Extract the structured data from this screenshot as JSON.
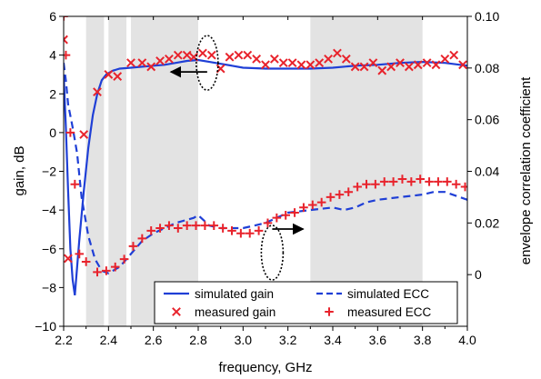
{
  "chart_data": {
    "type": "line",
    "xlabel": "frequency, GHz",
    "ylabel_left": "gain, dB",
    "ylabel_right": "envelope correlation coefficient",
    "xlim": [
      2.2,
      4.0
    ],
    "ylim_left": [
      -10,
      6
    ],
    "ylim_right": [
      -0.02,
      0.1
    ],
    "x_ticks": [
      "2.2",
      "2.4",
      "2.6",
      "2.8",
      "3.0",
      "3.2",
      "3.4",
      "3.6",
      "3.8",
      "4.0"
    ],
    "y_left_ticks": [
      "−10",
      "−8",
      "−6",
      "−4",
      "−2",
      "0",
      "2",
      "4",
      "6"
    ],
    "y_right_ticks": [
      "0",
      "0.02",
      "0.04",
      "0.06",
      "0.08",
      "0.10"
    ],
    "shaded_bands": [
      [
        2.3,
        2.38
      ],
      [
        2.4,
        2.48
      ],
      [
        2.5,
        2.8
      ],
      [
        3.3,
        3.8
      ]
    ],
    "grid": false,
    "legend_position": "bottom-right",
    "series": [
      {
        "name": "simulated gain",
        "axis": "left",
        "style": "solid",
        "color": "#1f3fd6",
        "x": [
          2.2,
          2.21,
          2.22,
          2.23,
          2.24,
          2.25,
          2.27,
          2.29,
          2.31,
          2.33,
          2.35,
          2.37,
          2.39,
          2.42,
          2.45,
          2.5,
          2.55,
          2.6,
          2.65,
          2.7,
          2.75,
          2.8,
          2.85,
          2.9,
          2.95,
          3.0,
          3.1,
          3.2,
          3.3,
          3.4,
          3.5,
          3.6,
          3.7,
          3.8,
          3.9,
          4.0
        ],
        "y": [
          3.0,
          0.2,
          -3.0,
          -6.0,
          -7.6,
          -8.4,
          -5.5,
          -3.0,
          -0.8,
          0.9,
          2.0,
          2.7,
          3.0,
          3.2,
          3.3,
          3.35,
          3.4,
          3.45,
          3.5,
          3.6,
          3.7,
          3.75,
          3.65,
          3.55,
          3.45,
          3.35,
          3.3,
          3.3,
          3.3,
          3.35,
          3.45,
          3.5,
          3.6,
          3.65,
          3.6,
          3.45
        ]
      },
      {
        "name": "measured gain",
        "axis": "left",
        "marker": "x",
        "color": "#e8232c",
        "x": [
          2.2,
          2.22,
          2.29,
          2.35,
          2.4,
          2.44,
          2.5,
          2.55,
          2.59,
          2.63,
          2.67,
          2.71,
          2.75,
          2.78,
          2.82,
          2.86,
          2.9,
          2.94,
          2.98,
          3.02,
          3.06,
          3.1,
          3.14,
          3.18,
          3.22,
          3.26,
          3.3,
          3.34,
          3.38,
          3.42,
          3.46,
          3.5,
          3.54,
          3.58,
          3.62,
          3.66,
          3.7,
          3.74,
          3.78,
          3.82,
          3.86,
          3.9,
          3.94,
          3.98
        ],
        "y": [
          4.8,
          -6.5,
          -0.1,
          2.1,
          3.0,
          2.9,
          3.6,
          3.6,
          3.4,
          3.7,
          3.8,
          4.0,
          4.0,
          3.9,
          4.1,
          4.0,
          3.3,
          3.9,
          4.0,
          4.0,
          3.8,
          3.5,
          3.8,
          3.6,
          3.6,
          3.5,
          3.5,
          3.6,
          3.8,
          4.1,
          3.8,
          3.4,
          3.4,
          3.6,
          3.2,
          3.4,
          3.6,
          3.4,
          3.5,
          3.6,
          3.5,
          3.8,
          4.0,
          3.5
        ]
      },
      {
        "name": "simulated ECC",
        "axis": "right",
        "style": "dashed",
        "color": "#1f3fd6",
        "x": [
          2.2,
          2.21,
          2.22,
          2.24,
          2.26,
          2.28,
          2.31,
          2.34,
          2.37,
          2.4,
          2.45,
          2.5,
          2.55,
          2.6,
          2.65,
          2.7,
          2.74,
          2.78,
          2.8,
          2.85,
          2.9,
          3.0,
          3.05,
          3.1,
          3.15,
          3.2,
          3.3,
          3.4,
          3.45,
          3.5,
          3.55,
          3.6,
          3.7,
          3.8,
          3.85,
          3.9,
          4.0
        ],
        "y": [
          0.082,
          0.075,
          0.066,
          0.057,
          0.047,
          0.03,
          0.015,
          0.006,
          0.0015,
          0.0005,
          0.003,
          0.008,
          0.013,
          0.016,
          0.018,
          0.02,
          0.021,
          0.022,
          0.023,
          0.019,
          0.018,
          0.018,
          0.019,
          0.02,
          0.022,
          0.024,
          0.025,
          0.026,
          0.025,
          0.026,
          0.028,
          0.029,
          0.03,
          0.031,
          0.032,
          0.032,
          0.029
        ]
      },
      {
        "name": "measured ECC",
        "axis": "right",
        "marker": "+",
        "color": "#e8232c",
        "x": [
          2.2,
          2.21,
          2.23,
          2.25,
          2.27,
          2.3,
          2.35,
          2.39,
          2.43,
          2.47,
          2.51,
          2.55,
          2.59,
          2.63,
          2.67,
          2.71,
          2.75,
          2.79,
          2.83,
          2.87,
          2.91,
          2.95,
          2.99,
          3.03,
          3.07,
          3.11,
          3.15,
          3.19,
          3.23,
          3.27,
          3.31,
          3.35,
          3.39,
          3.43,
          3.47,
          3.51,
          3.55,
          3.59,
          3.63,
          3.67,
          3.71,
          3.75,
          3.79,
          3.83,
          3.87,
          3.91,
          3.95,
          3.99
        ],
        "y": [
          0.1,
          0.085,
          0.055,
          0.035,
          0.008,
          0.005,
          0.001,
          0.0015,
          0.003,
          0.006,
          0.011,
          0.014,
          0.017,
          0.018,
          0.019,
          0.018,
          0.019,
          0.019,
          0.019,
          0.019,
          0.018,
          0.017,
          0.016,
          0.016,
          0.017,
          0.02,
          0.022,
          0.023,
          0.024,
          0.026,
          0.027,
          0.028,
          0.03,
          0.031,
          0.032,
          0.034,
          0.035,
          0.035,
          0.036,
          0.036,
          0.037,
          0.036,
          0.037,
          0.036,
          0.036,
          0.036,
          0.035,
          0.034
        ]
      }
    ],
    "annotations": [
      {
        "type": "ellipse-arrow",
        "target": "left-axis",
        "near_x": 2.84,
        "near_y_left": 3.6
      },
      {
        "type": "ellipse-arrow",
        "target": "right-axis",
        "near_x": 3.13,
        "near_y_left": -6.2
      }
    ]
  }
}
